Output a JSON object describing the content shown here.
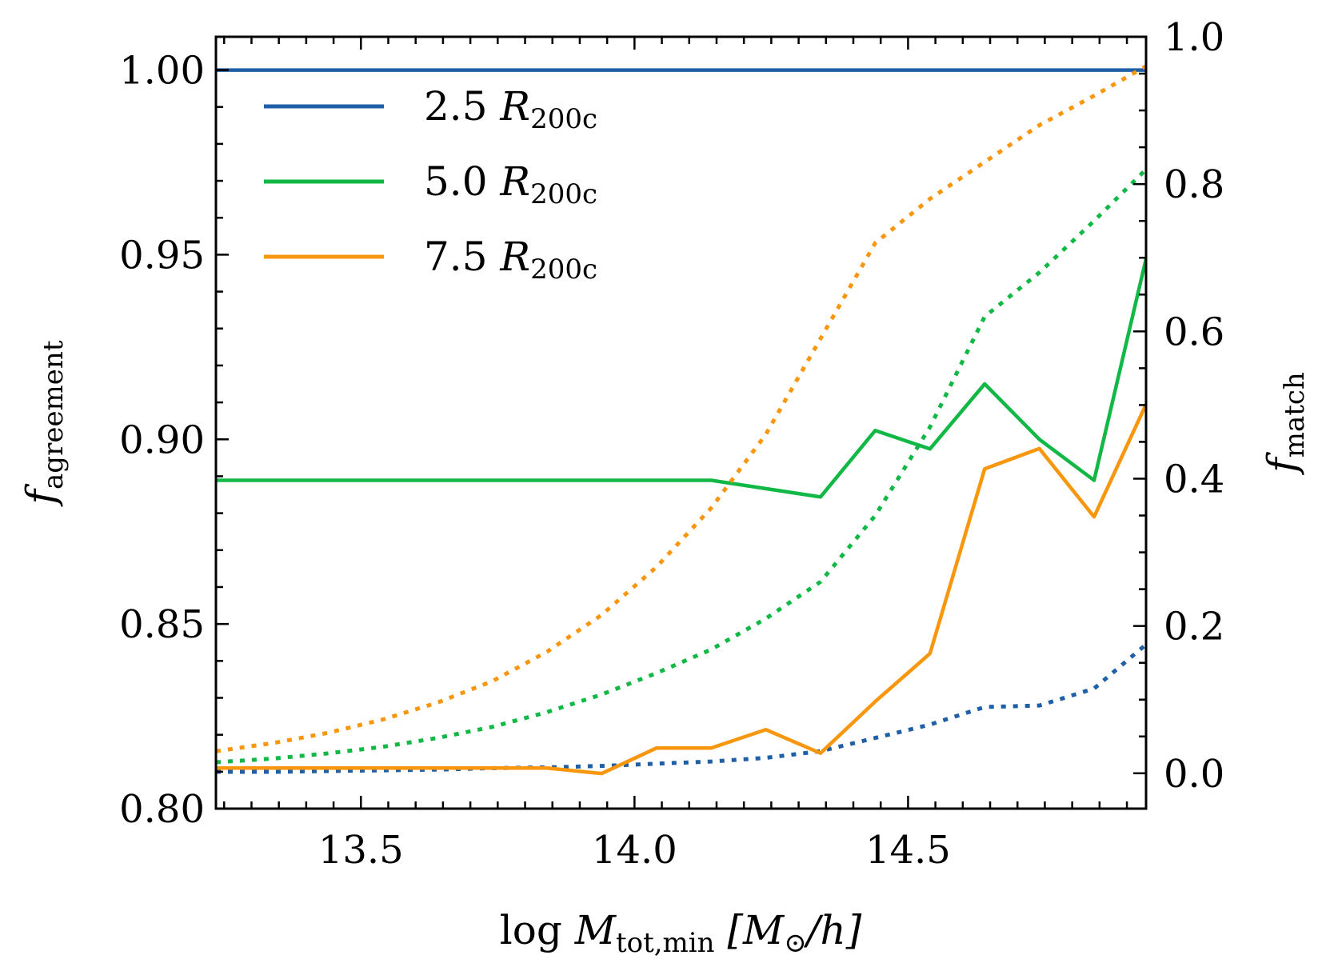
{
  "chart_data": {
    "type": "line",
    "xlabel": {
      "prefix": "log ",
      "main": "M",
      "sub": "tot,min",
      "unit_open": " [M",
      "unit_sub": "⊙",
      "unit_close": "/h]"
    },
    "ylabel_left": {
      "main": "f",
      "sub": "agreement"
    },
    "ylabel_right": {
      "main": "f",
      "sub": "match"
    },
    "xlim": [
      13.235,
      14.935
    ],
    "ylim_left": [
      0.8,
      1.009
    ],
    "ylim_right": [
      -0.048,
      1.0
    ],
    "xticks": [
      13.5,
      14.0,
      14.5
    ],
    "xtick_labels": [
      "13.5",
      "14.0",
      "14.5"
    ],
    "yticks_left": [
      0.8,
      0.85,
      0.9,
      0.95,
      1.0
    ],
    "ytick_labels_left": [
      "0.80",
      "0.85",
      "0.90",
      "0.95",
      "1.00"
    ],
    "yticks_right": [
      0.0,
      0.2,
      0.4,
      0.6,
      0.8,
      1.0
    ],
    "ytick_labels_right": [
      "0.0",
      "0.2",
      "0.4",
      "0.6",
      "0.8",
      "1.0"
    ],
    "grid": false,
    "legend_position": "top-left",
    "series": [
      {
        "name": "2.5",
        "legend_sub": "200c",
        "color": "#1f5fa6",
        "agreement": {
          "x": [
            13.235,
            14.935
          ],
          "y": [
            1.0,
            1.0
          ]
        },
        "match": {
          "x": [
            13.235,
            13.34,
            13.44,
            13.54,
            13.64,
            13.74,
            13.84,
            13.94,
            14.04,
            14.14,
            14.24,
            14.34,
            14.44,
            14.54,
            14.64,
            14.74,
            14.84,
            14.935
          ],
          "y": [
            0.002,
            0.002,
            0.003,
            0.004,
            0.005,
            0.007,
            0.008,
            0.01,
            0.013,
            0.016,
            0.021,
            0.03,
            0.048,
            0.066,
            0.09,
            0.092,
            0.115,
            0.175
          ]
        }
      },
      {
        "name": "5.0",
        "legend_sub": "200c",
        "color": "#12b845",
        "agreement": {
          "x": [
            13.235,
            14.14,
            14.34,
            14.44,
            14.54,
            14.64,
            14.74,
            14.84,
            14.935
          ],
          "y": [
            0.8889,
            0.8889,
            0.8844,
            0.9024,
            0.8974,
            0.915,
            0.9,
            0.8889,
            0.9489
          ]
        },
        "match": {
          "x": [
            13.235,
            13.34,
            13.44,
            13.54,
            13.64,
            13.74,
            13.84,
            13.94,
            14.04,
            14.14,
            14.24,
            14.34,
            14.44,
            14.54,
            14.64,
            14.74,
            14.84,
            14.935
          ],
          "y": [
            0.015,
            0.02,
            0.027,
            0.036,
            0.048,
            0.063,
            0.083,
            0.107,
            0.136,
            0.168,
            0.21,
            0.26,
            0.35,
            0.47,
            0.62,
            0.68,
            0.75,
            0.82
          ]
        }
      },
      {
        "name": "7.5",
        "legend_sub": "200c",
        "color": "#f8960d",
        "agreement": {
          "x": [
            13.235,
            13.84,
            13.94,
            14.04,
            14.14,
            14.24,
            14.34,
            14.44,
            14.54,
            14.64,
            14.74,
            14.84,
            14.935
          ],
          "y": [
            0.811,
            0.811,
            0.8095,
            0.8164,
            0.8164,
            0.8214,
            0.815,
            0.829,
            0.842,
            0.892,
            0.8975,
            0.879,
            0.9095
          ]
        },
        "match": {
          "x": [
            13.235,
            13.34,
            13.44,
            13.54,
            13.64,
            13.74,
            13.84,
            13.94,
            14.04,
            14.14,
            14.24,
            14.34,
            14.44,
            14.54,
            14.64,
            14.74,
            14.84,
            14.935
          ],
          "y": [
            0.03,
            0.041,
            0.055,
            0.073,
            0.096,
            0.125,
            0.165,
            0.215,
            0.28,
            0.36,
            0.46,
            0.59,
            0.72,
            0.78,
            0.83,
            0.88,
            0.92,
            0.96
          ]
        }
      }
    ]
  }
}
